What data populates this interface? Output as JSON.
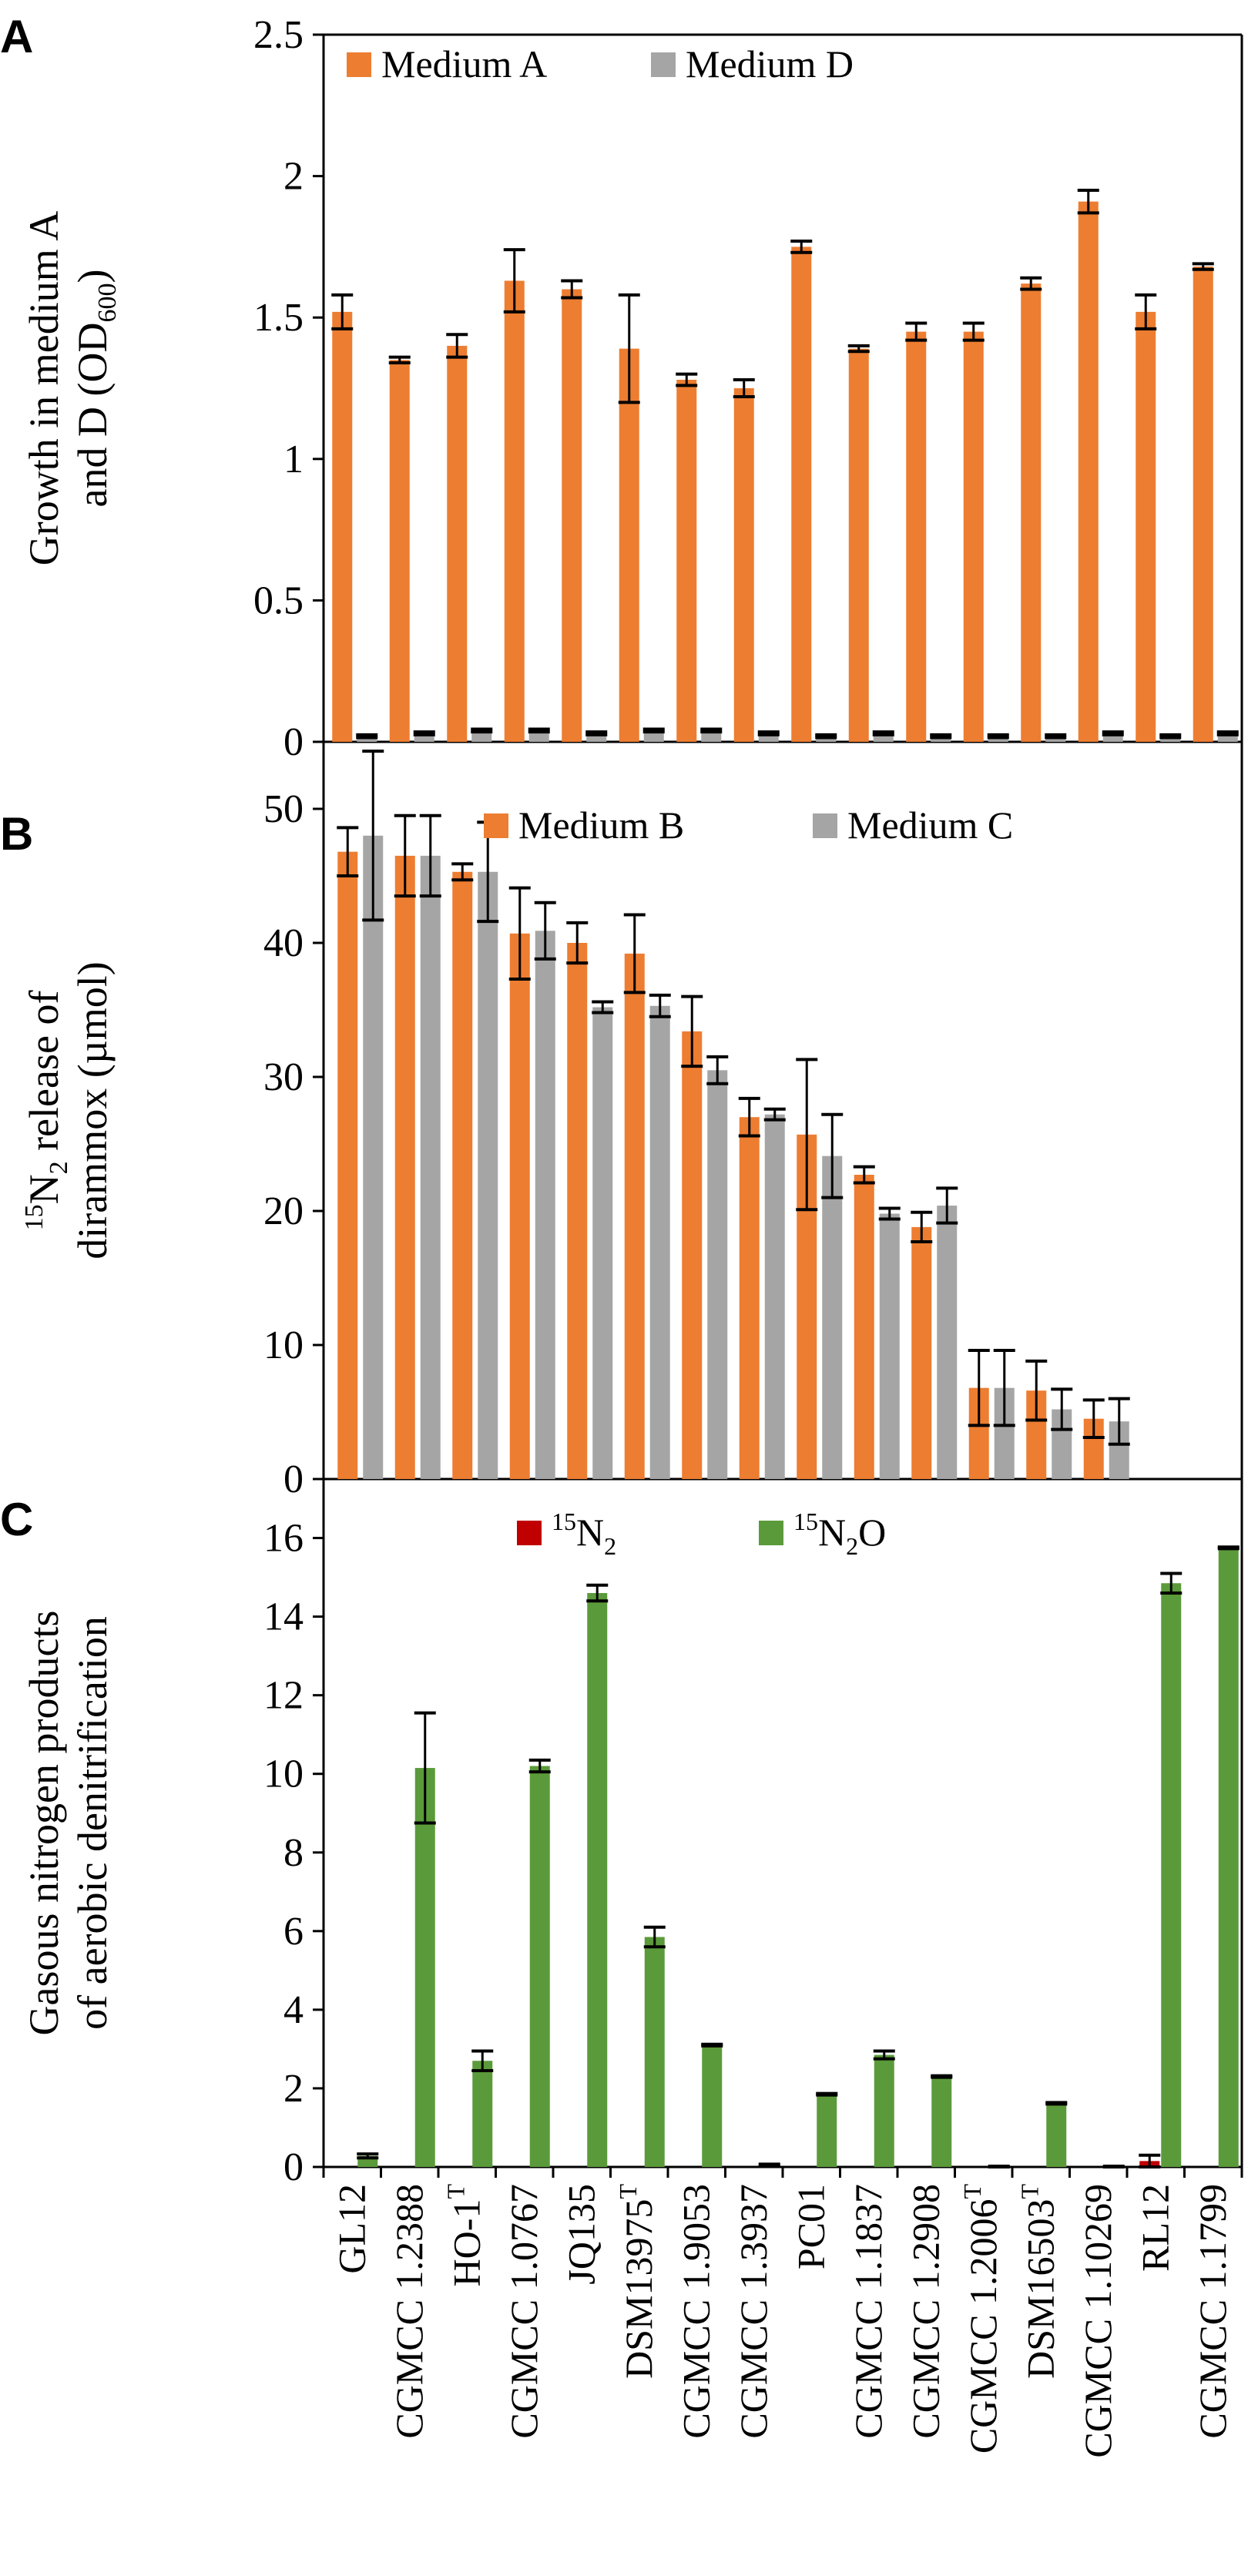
{
  "categories": [
    {
      "name": "GL12",
      "sup": ""
    },
    {
      "name": "CGMCC 1.2388",
      "sup": ""
    },
    {
      "name": "HO-1",
      "sup": "T"
    },
    {
      "name": "CGMCC 1.0767",
      "sup": ""
    },
    {
      "name": "JQ135",
      "sup": ""
    },
    {
      "name": "DSM13975",
      "sup": "T"
    },
    {
      "name": "CGMCC 1.9053",
      "sup": ""
    },
    {
      "name": "CGMCC 1.3937",
      "sup": ""
    },
    {
      "name": "PC01",
      "sup": ""
    },
    {
      "name": "CGMCC 1.1837",
      "sup": ""
    },
    {
      "name": "CGMCC 1.2908",
      "sup": ""
    },
    {
      "name": "CGMCC 1.2006",
      "sup": "T"
    },
    {
      "name": "DSM16503",
      "sup": "T"
    },
    {
      "name": "CGMCC 1.10269",
      "sup": ""
    },
    {
      "name": "RL12",
      "sup": ""
    },
    {
      "name": "CGMCC 1.1799",
      "sup": ""
    }
  ],
  "colors": {
    "orange": "#ED7D31",
    "gray": "#A5A5A5",
    "red": "#C00000",
    "green": "#5B9A3A"
  },
  "chart_data": [
    {
      "panel": "A",
      "type": "bar",
      "ylabel_line1": "Growth in medium A",
      "ylabel_line2_pre": "and D (OD",
      "ylabel_line2_sub": "600",
      "ylabel_line2_post": ")",
      "ylim": [
        0,
        2.5
      ],
      "yticks": [
        0,
        0.5,
        1,
        1.5,
        2,
        2.5
      ],
      "ytick_labels": [
        "0",
        "0.5",
        "1",
        "1.5",
        "2",
        "2.5"
      ],
      "series": [
        {
          "name": "Medium A",
          "color": "#ED7D31",
          "values": [
            1.52,
            1.35,
            1.4,
            1.63,
            1.6,
            1.39,
            1.28,
            1.25,
            1.75,
            1.39,
            1.45,
            1.45,
            1.62,
            1.91,
            1.52,
            1.68
          ],
          "errors": [
            0.06,
            0.01,
            0.04,
            0.11,
            0.03,
            0.19,
            0.02,
            0.03,
            0.02,
            0.01,
            0.03,
            0.03,
            0.02,
            0.04,
            0.06,
            0.01
          ]
        },
        {
          "name": "Medium D",
          "color": "#A5A5A5",
          "values": [
            0.02,
            0.03,
            0.04,
            0.04,
            0.03,
            0.04,
            0.04,
            0.03,
            0.02,
            0.03,
            0.02,
            0.02,
            0.02,
            0.03,
            0.02,
            0.03
          ],
          "errors": [
            0.005,
            0.005,
            0.005,
            0.005,
            0.005,
            0.005,
            0.005,
            0.005,
            0.005,
            0.005,
            0.005,
            0.005,
            0.005,
            0.005,
            0.005,
            0.005
          ]
        }
      ]
    },
    {
      "panel": "B",
      "type": "bar",
      "ylabel_line1_sup": "15",
      "ylabel_line1_pre": "N",
      "ylabel_line1_sub": "2",
      "ylabel_line1_post": " release of",
      "ylabel_line2": "dirammox (µmol)",
      "ylim": [
        0,
        55
      ],
      "yticks": [
        0,
        10,
        20,
        30,
        40,
        50
      ],
      "ytick_labels": [
        "0",
        "10",
        "20",
        "30",
        "40",
        "50"
      ],
      "series": [
        {
          "name": "Medium B",
          "color": "#ED7D31",
          "values": [
            46.8,
            46.5,
            45.3,
            40.7,
            40.0,
            39.2,
            33.4,
            27.0,
            25.7,
            22.7,
            18.8,
            6.8,
            6.6,
            4.5,
            null,
            null
          ],
          "errors": [
            1.8,
            3.0,
            0.6,
            3.4,
            1.5,
            2.9,
            2.6,
            1.4,
            5.6,
            0.6,
            1.1,
            2.8,
            2.2,
            1.4,
            0,
            0
          ]
        },
        {
          "name": "Medium C",
          "color": "#A5A5A5",
          "values": [
            48.0,
            46.5,
            45.3,
            40.9,
            35.2,
            35.3,
            30.5,
            27.2,
            24.1,
            19.8,
            20.4,
            6.8,
            5.2,
            4.3,
            null,
            null
          ],
          "errors": [
            6.3,
            3.0,
            3.7,
            2.1,
            0.4,
            0.8,
            1.0,
            0.4,
            3.1,
            0.4,
            1.3,
            2.8,
            1.5,
            1.7,
            0,
            0
          ]
        }
      ]
    },
    {
      "panel": "C",
      "type": "bar",
      "ylabel_line1": "Gasous nitrogen products",
      "ylabel_line2": "of aerobic denitrification",
      "ylim": [
        0,
        17.5
      ],
      "yticks": [
        0,
        2,
        4,
        6,
        8,
        10,
        12,
        14,
        16
      ],
      "ytick_labels": [
        "0",
        "2",
        "4",
        "6",
        "8",
        "10",
        "12",
        "14",
        "16"
      ],
      "series": [
        {
          "name": "N2",
          "sup": "15",
          "pre": "N",
          "sub": "2",
          "post": "",
          "color": "#C00000",
          "values": [
            0.0,
            0.0,
            0.0,
            0.0,
            0.0,
            0.0,
            0.0,
            0.0,
            0.0,
            0.0,
            0.0,
            0.0,
            0.0,
            0.0,
            0.15,
            0.0
          ],
          "errors": [
            0,
            0,
            0,
            0,
            0,
            0,
            0,
            0,
            0,
            0,
            0,
            0,
            0,
            0,
            0.15,
            0
          ]
        },
        {
          "name": "N2O",
          "sup": "15",
          "pre": "N",
          "sub": "2",
          "post": "O",
          "color": "#5B9A3A",
          "values": [
            0.28,
            10.15,
            2.7,
            10.2,
            14.6,
            5.85,
            3.1,
            0.05,
            1.85,
            2.85,
            2.3,
            0.0,
            1.62,
            0.0,
            14.85,
            15.75
          ],
          "errors": [
            0.05,
            1.4,
            0.25,
            0.15,
            0.2,
            0.25,
            0.02,
            0.02,
            0.02,
            0.1,
            0.02,
            0.02,
            0.02,
            0.02,
            0.25,
            0.02
          ]
        }
      ]
    }
  ]
}
